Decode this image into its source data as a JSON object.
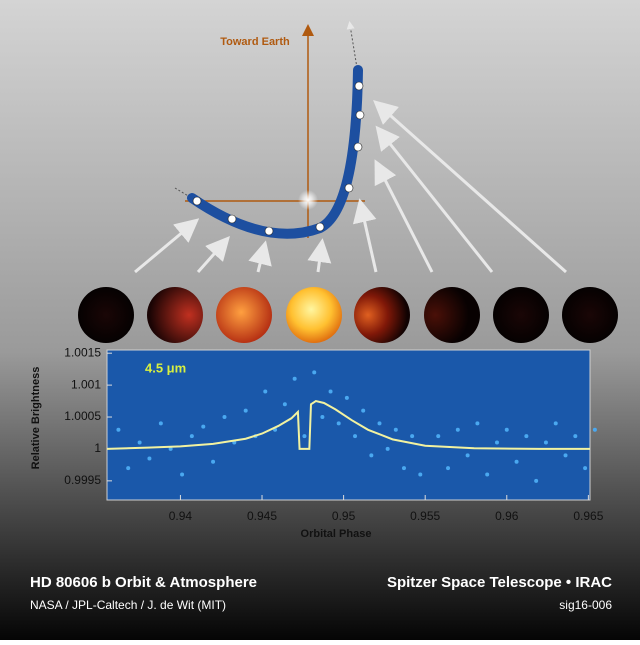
{
  "chart_data": {
    "type": "scatter",
    "title": "HD 80606 b Orbit & Atmosphere",
    "credit": "NASA / JPL-Caltech / J. de Wit (MIT)",
    "instrument": "Spitzer Space Telescope • IRAC",
    "id": "sig16-006",
    "diagram_label": "Toward Earth",
    "annotation": "4.5 μm",
    "xlabel": "Orbital Phase",
    "ylabel": "Relative Brightness",
    "xlim": [
      0.9355,
      0.9651
    ],
    "ylim": [
      0.9992,
      1.00155
    ],
    "xticks": [
      0.94,
      0.945,
      0.95,
      0.955,
      0.96,
      0.965
    ],
    "yticks": [
      0.9995,
      1,
      1.0005,
      1.001,
      1.0015
    ],
    "points": {
      "color": "#4aa8f0",
      "x": [
        0.9362,
        0.9368,
        0.9375,
        0.9381,
        0.9388,
        0.9394,
        0.9401,
        0.9407,
        0.9414,
        0.942,
        0.9427,
        0.9433,
        0.944,
        0.9446,
        0.9452,
        0.9458,
        0.9464,
        0.947,
        0.9476,
        0.9482,
        0.9487,
        0.9492,
        0.9497,
        0.9502,
        0.9507,
        0.9512,
        0.9517,
        0.9522,
        0.9527,
        0.9532,
        0.9537,
        0.9542,
        0.9547,
        0.9558,
        0.9564,
        0.957,
        0.9576,
        0.9582,
        0.9588,
        0.9594,
        0.96,
        0.9606,
        0.9612,
        0.9618,
        0.9624,
        0.963,
        0.9636,
        0.9642,
        0.9648,
        0.9654
      ],
      "y": [
        1.0003,
        0.9997,
        1.0001,
        0.99985,
        1.0004,
        1.0,
        0.9996,
        1.0002,
        1.00035,
        0.9998,
        1.0005,
        1.0001,
        1.0006,
        1.0002,
        1.0009,
        1.0003,
        1.0007,
        1.0011,
        1.0002,
        1.0012,
        1.0005,
        1.0009,
        1.0004,
        1.0008,
        1.0002,
        1.0006,
        0.9999,
        1.0004,
        1.0,
        1.0003,
        0.9997,
        1.0002,
        0.9996,
        1.0002,
        0.9997,
        1.0003,
        0.9999,
        1.0004,
        0.9996,
        1.0001,
        1.0003,
        0.9998,
        1.0002,
        0.9995,
        1.0001,
        1.0004,
        0.9999,
        1.0002,
        0.9997,
        1.0003
      ]
    },
    "model": {
      "color": "#f2f2a0",
      "x": [
        0.9355,
        0.938,
        0.94,
        0.942,
        0.944,
        0.945,
        0.946,
        0.9468,
        0.9472,
        0.9473,
        0.9479,
        0.948,
        0.9483,
        0.9488,
        0.9495,
        0.9505,
        0.9515,
        0.953,
        0.955,
        0.958,
        0.962,
        0.9651
      ],
      "values": [
        1.0,
        1.00002,
        1.00004,
        1.00008,
        1.00016,
        1.00024,
        1.00036,
        1.00048,
        1.00058,
        1.0,
        1.0,
        1.0007,
        1.00075,
        1.00072,
        1.00062,
        1.00045,
        1.0003,
        1.00015,
        1.00005,
        1.00001,
        1.0,
        1.0
      ]
    }
  }
}
